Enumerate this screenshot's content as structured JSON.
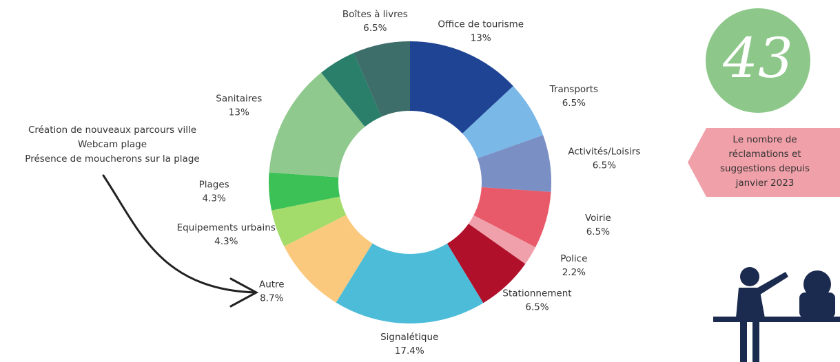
{
  "chart_data": {
    "type": "pie",
    "categories": [
      "Office de tourisme",
      "Transports",
      "Activités/Loisirs",
      "Voirie",
      "Police",
      "Stationnement",
      "Signalétique",
      "Autre",
      "Equipements urbains",
      "Plages",
      "Sanitaires",
      null,
      "Boîtes à livres"
    ],
    "values": [
      13,
      6.5,
      6.5,
      6.5,
      2.2,
      6.5,
      17.4,
      8.7,
      4.3,
      4.3,
      13,
      4.3,
      6.5
    ],
    "value_labels": [
      "13%",
      "6.5%",
      "6.5%",
      "6.5%",
      "2.2%",
      "6.5%",
      "17.4%",
      "8.7%",
      "4.3%",
      "4.3%",
      "13%",
      null,
      "6.5%"
    ],
    "colors": [
      "#1f4494",
      "#7ab8e8",
      "#7a8fc4",
      "#e85a6a",
      "#f0a0ab",
      "#b0102a",
      "#4dbcd9",
      "#fbc97e",
      "#a3dc6a",
      "#3cc156",
      "#8fc98e",
      "#2a7f6a",
      "#3d6e6a"
    ],
    "annotation": [
      "Création de nouveaux parcours ville",
      "Webcam plage",
      "Présence de moucherons sur la plage"
    ]
  },
  "kpi": {
    "value": 43,
    "caption": [
      "Le nombre de",
      "réclamations et",
      "suggestions depuis",
      "janvier 2023"
    ]
  }
}
